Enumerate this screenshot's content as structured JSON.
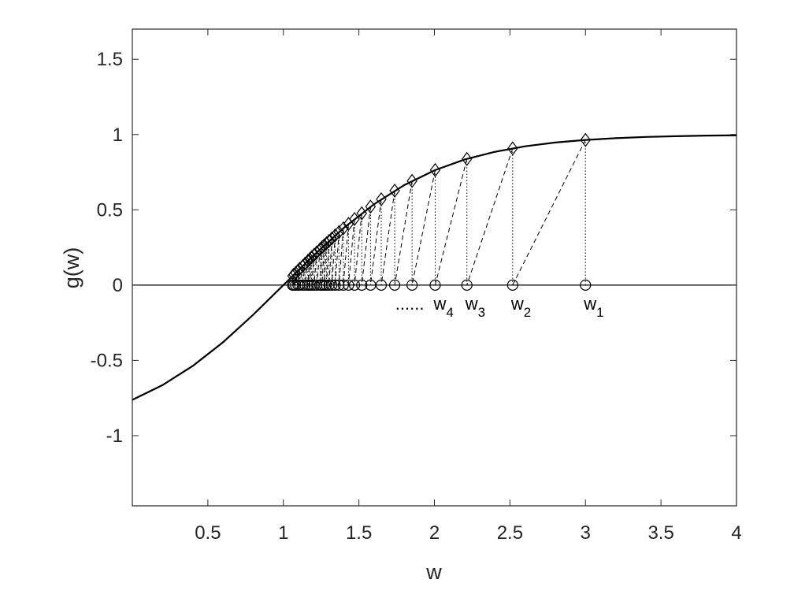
{
  "chart_data": {
    "type": "line",
    "xlabel": "w",
    "ylabel": "g(w)",
    "xlim": [
      0,
      4
    ],
    "ylim": [
      -1.466,
      1.7
    ],
    "xticks": [
      0.5,
      1,
      1.5,
      2,
      2.5,
      3,
      3.5,
      4
    ],
    "yticks": [
      -1,
      -0.5,
      0,
      0.5,
      1,
      1.5
    ],
    "color": "#000000",
    "x": [
      0,
      0.2,
      0.4,
      0.6,
      0.8,
      1.0,
      1.2,
      1.4,
      1.6,
      1.8,
      2.0,
      2.2,
      2.4,
      2.6,
      2.8,
      3.0,
      3.2,
      3.4,
      3.6,
      3.8,
      4.0
    ],
    "values": [
      -0.762,
      -0.664,
      -0.537,
      -0.38,
      -0.197,
      0,
      0.197,
      0.38,
      0.537,
      0.664,
      0.762,
      0.834,
      0.885,
      0.922,
      0.947,
      0.964,
      0.976,
      0.984,
      0.989,
      0.993,
      0.995
    ],
    "iterates": {
      "w": [
        3,
        2.518,
        2.215,
        2.005,
        1.852,
        1.737,
        1.648,
        1.577,
        1.519,
        1.471,
        1.431,
        1.397,
        1.368,
        1.343,
        1.321,
        1.302,
        1.285,
        1.27,
        1.256,
        1.243,
        1.221,
        1.203,
        1.187,
        1.174,
        1.162,
        1.143,
        1.128,
        1.108,
        1.097,
        1.081,
        1.069,
        1.061
      ],
      "g": [
        0.964,
        0.908,
        0.838,
        0.764,
        0.692,
        0.627,
        0.57,
        0.521,
        0.477,
        0.439,
        0.406,
        0.377,
        0.352,
        0.33,
        0.31,
        0.293,
        0.277,
        0.264,
        0.251,
        0.238,
        0.218,
        0.2,
        0.185,
        0.172,
        0.161,
        0.142,
        0.127,
        0.108,
        0.097,
        0.081,
        0.069,
        0.061
      ]
    },
    "annotations": [
      {
        "base": "w",
        "sub": "1"
      },
      {
        "base": "w",
        "sub": "2"
      },
      {
        "base": "w",
        "sub": "3"
      },
      {
        "base": "w",
        "sub": "4"
      }
    ],
    "ellipsis": "......"
  }
}
